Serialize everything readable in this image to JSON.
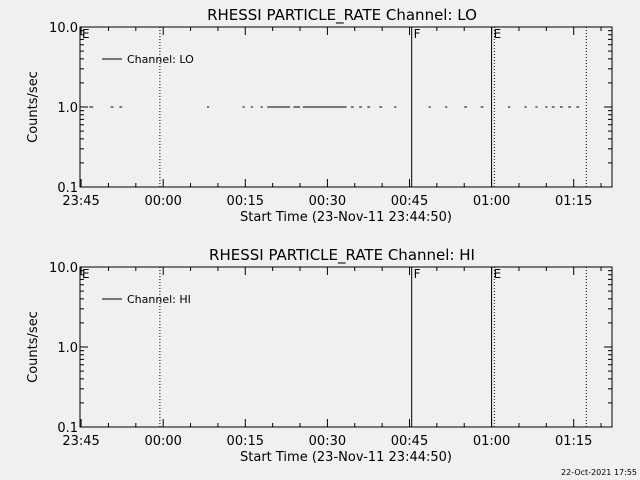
{
  "footer": {
    "timestamp": "22-Oct-2021 17:55"
  },
  "chart_data": [
    {
      "type": "line",
      "title": "RHESSI PARTICLE_RATE Channel: LO",
      "xlabel": "Start Time (23-Nov-11 23:44:50)",
      "ylabel": "Counts/sec",
      "y_scale": "log",
      "ylim": [
        0.1,
        10.0
      ],
      "y_ticks": [
        "0.1",
        "1.0",
        "10.0"
      ],
      "xlim_minutes": [
        -0.2,
        97.0
      ],
      "x_ticks": [
        {
          "label": "23:45",
          "min": 0
        },
        {
          "label": "00:00",
          "min": 15
        },
        {
          "label": "00:15",
          "min": 30
        },
        {
          "label": "00:30",
          "min": 45
        },
        {
          "label": "00:45",
          "min": 60
        },
        {
          "label": "01:00",
          "min": 75
        },
        {
          "label": "01:15",
          "min": 90
        }
      ],
      "legend": {
        "position": "top-left",
        "entries": [
          "Channel: LO"
        ]
      },
      "series": [
        {
          "name": "Channel: LO",
          "value": 1.0,
          "segments_minutes": [
            [
              1.5,
              2.2
            ],
            [
              5.4,
              5.9
            ],
            [
              7.0,
              7.5
            ],
            [
              23.0,
              23.4
            ],
            [
              29.5,
              29.9
            ],
            [
              31.0,
              31.4
            ],
            [
              32.8,
              33.2
            ],
            [
              34.0,
              38.2
            ],
            [
              38.8,
              40.0
            ],
            [
              40.5,
              48.5
            ],
            [
              49.3,
              49.8
            ],
            [
              50.8,
              51.3
            ],
            [
              52.3,
              52.8
            ],
            [
              54.5,
              55.0
            ],
            [
              57.2,
              57.6
            ],
            [
              63.5,
              63.9
            ],
            [
              66.5,
              66.9
            ],
            [
              70.0,
              70.5
            ],
            [
              73.0,
              73.5
            ],
            [
              78.0,
              78.4
            ],
            [
              81.0,
              81.4
            ],
            [
              83.0,
              83.4
            ],
            [
              84.8,
              85.2
            ],
            [
              86.0,
              86.5
            ],
            [
              87.5,
              88.0
            ],
            [
              89.0,
              89.5
            ],
            [
              90.5,
              91.0
            ]
          ]
        }
      ],
      "markers": [
        {
          "label": "E",
          "min": -0.2,
          "style": "dotted"
        },
        {
          "label": "",
          "min": 14.4,
          "style": "dotted"
        },
        {
          "label": "F",
          "min": 60.4,
          "style": "solid"
        },
        {
          "label": "E",
          "min": 75.0,
          "style": "solid"
        },
        {
          "label": "",
          "min": 75.5,
          "style": "dotted"
        },
        {
          "label": "",
          "min": 92.3,
          "style": "dotted"
        }
      ]
    },
    {
      "type": "line",
      "title": "RHESSI PARTICLE_RATE Channel: HI",
      "xlabel": "Start Time (23-Nov-11 23:44:50)",
      "ylabel": "Counts/sec",
      "y_scale": "log",
      "ylim": [
        0.1,
        10.0
      ],
      "y_ticks": [
        "0.1",
        "1.0",
        "10.0"
      ],
      "xlim_minutes": [
        -0.2,
        97.0
      ],
      "x_ticks": [
        {
          "label": "23:45",
          "min": 0
        },
        {
          "label": "00:00",
          "min": 15
        },
        {
          "label": "00:15",
          "min": 30
        },
        {
          "label": "00:30",
          "min": 45
        },
        {
          "label": "00:45",
          "min": 60
        },
        {
          "label": "01:00",
          "min": 75
        },
        {
          "label": "01:15",
          "min": 90
        }
      ],
      "legend": {
        "position": "top-left",
        "entries": [
          "Channel: HI"
        ]
      },
      "series": [
        {
          "name": "Channel: HI",
          "value": null,
          "segments_minutes": []
        }
      ],
      "markers": [
        {
          "label": "E",
          "min": -0.2,
          "style": "dotted"
        },
        {
          "label": "",
          "min": 14.4,
          "style": "dotted"
        },
        {
          "label": "F",
          "min": 60.4,
          "style": "solid"
        },
        {
          "label": "E",
          "min": 75.0,
          "style": "solid"
        },
        {
          "label": "",
          "min": 75.5,
          "style": "dotted"
        },
        {
          "label": "",
          "min": 92.3,
          "style": "dotted"
        }
      ]
    }
  ]
}
